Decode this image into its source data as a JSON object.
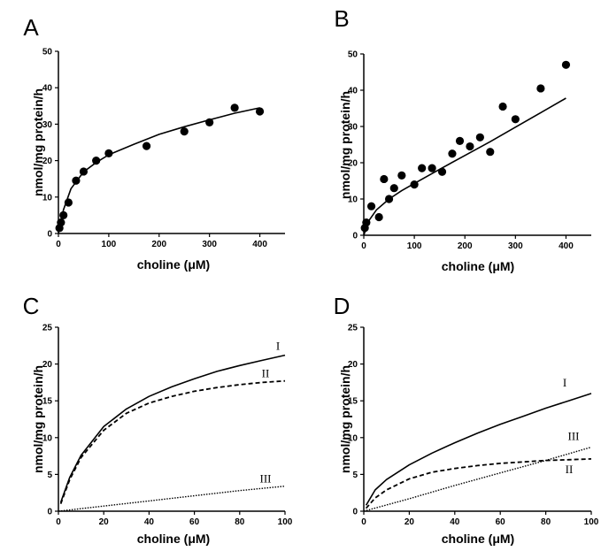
{
  "chart_data": [
    {
      "panel": "A",
      "type": "scatter",
      "xlabel": "choline (μM)",
      "ylabel": "nmol/mg protein/h",
      "xlim": [
        0,
        450
      ],
      "ylim": [
        0,
        50
      ],
      "xticks": [
        0,
        100,
        200,
        300,
        400
      ],
      "yticks": [
        0,
        10,
        20,
        30,
        40,
        50
      ],
      "series": [
        {
          "kind": "points",
          "x": [
            2,
            5,
            10,
            20,
            35,
            50,
            75,
            100,
            175,
            250,
            300,
            350,
            400
          ],
          "y": [
            1.5,
            3,
            5,
            8.5,
            14.5,
            17,
            20,
            22,
            24,
            28,
            30.5,
            34.5,
            33.5
          ]
        },
        {
          "kind": "fit",
          "x": [
            0,
            10,
            25,
            50,
            75,
            100,
            150,
            200,
            250,
            300,
            350,
            400
          ],
          "y": [
            0,
            6.5,
            12.3,
            16.9,
            19.5,
            21.6,
            24.5,
            27.2,
            29.3,
            31.2,
            33,
            34.5
          ]
        }
      ]
    },
    {
      "panel": "B",
      "type": "scatter",
      "xlabel": "choline (μM)",
      "ylabel": "nmol/mg protein/h",
      "xlim": [
        0,
        450
      ],
      "ylim": [
        0,
        50
      ],
      "xticks": [
        0,
        100,
        200,
        300,
        400
      ],
      "yticks": [
        0,
        10,
        20,
        30,
        40,
        50
      ],
      "series": [
        {
          "kind": "points",
          "x": [
            2,
            5,
            15,
            30,
            40,
            50,
            60,
            75,
            100,
            115,
            135,
            155,
            175,
            190,
            210,
            230,
            250,
            275,
            300,
            350,
            400
          ],
          "y": [
            2,
            3.5,
            8,
            5,
            15.5,
            10,
            13,
            16.5,
            14,
            18.5,
            18.5,
            17.5,
            22.5,
            26,
            24.5,
            27,
            23,
            35.5,
            32,
            40.5,
            47
          ]
        },
        {
          "kind": "fit",
          "x": [
            0,
            10,
            25,
            50,
            75,
            100,
            150,
            200,
            250,
            300,
            350,
            400
          ],
          "y": [
            0,
            4,
            7,
            10,
            12.3,
            14.3,
            18.2,
            22,
            25.8,
            29.8,
            33.8,
            37.8
          ]
        }
      ]
    },
    {
      "panel": "C",
      "type": "line",
      "xlabel": "choline (μM)",
      "ylabel": "nmol/mg protein/h",
      "xlim": [
        0,
        100
      ],
      "ylim": [
        0,
        25
      ],
      "xticks": [
        0,
        20,
        40,
        60,
        80,
        100
      ],
      "yticks": [
        0,
        5,
        10,
        15,
        20,
        25
      ],
      "series": [
        {
          "name": "I",
          "style": "solid",
          "x": [
            1,
            5,
            10,
            20,
            30,
            40,
            50,
            60,
            70,
            80,
            90,
            100
          ],
          "y": [
            1.2,
            4.6,
            7.6,
            11.5,
            13.9,
            15.6,
            16.9,
            18,
            19,
            19.8,
            20.5,
            21.2
          ]
        },
        {
          "name": "II",
          "style": "dashed",
          "x": [
            1,
            5,
            10,
            20,
            30,
            40,
            50,
            60,
            70,
            80,
            90,
            100
          ],
          "y": [
            1,
            4.3,
            7.3,
            11,
            13.3,
            14.7,
            15.6,
            16.3,
            16.8,
            17.2,
            17.5,
            17.7
          ]
        },
        {
          "name": "III",
          "style": "dotted",
          "x": [
            0,
            20,
            40,
            60,
            80,
            100
          ],
          "y": [
            0,
            0.7,
            1.4,
            2.1,
            2.8,
            3.4
          ]
        }
      ]
    },
    {
      "panel": "D",
      "type": "line",
      "xlabel": "choline (μM)",
      "ylabel": "nmol/mg protein/h",
      "xlim": [
        0,
        100
      ],
      "ylim": [
        0,
        25
      ],
      "xticks": [
        0,
        20,
        40,
        60,
        80,
        100
      ],
      "yticks": [
        0,
        5,
        10,
        15,
        20,
        25
      ],
      "series": [
        {
          "name": "I",
          "style": "solid",
          "x": [
            1,
            5,
            10,
            20,
            30,
            40,
            50,
            60,
            70,
            80,
            90,
            100
          ],
          "y": [
            0.8,
            2.9,
            4.3,
            6.3,
            7.9,
            9.3,
            10.6,
            11.8,
            12.9,
            14,
            15,
            16
          ]
        },
        {
          "name": "II",
          "style": "dashed",
          "x": [
            1,
            5,
            10,
            20,
            30,
            40,
            50,
            60,
            70,
            80,
            90,
            100
          ],
          "y": [
            0.4,
            1.8,
            2.9,
            4.4,
            5.3,
            5.8,
            6.2,
            6.5,
            6.7,
            6.9,
            7,
            7.1
          ]
        },
        {
          "name": "III",
          "style": "dotted",
          "x": [
            0,
            20,
            40,
            60,
            80,
            100
          ],
          "y": [
            0,
            1.7,
            3.5,
            5.2,
            6.9,
            8.7
          ]
        }
      ]
    }
  ]
}
